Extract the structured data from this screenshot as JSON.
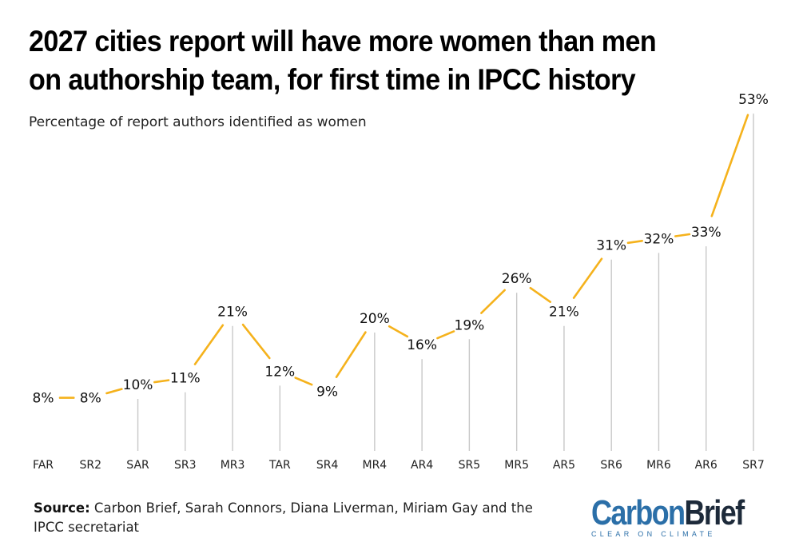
{
  "title": "2027 cities report will have more women than men on authorship team, for first time in IPCC history",
  "subtitle": "Percentage of report authors identified as women",
  "source_label": "Source:",
  "source_text": " Carbon Brief, Sarah Connors, Diana Liverman, Miriam Gay and the IPCC secretariat",
  "logo": {
    "part1": "Carbon",
    "part2": "Brief",
    "tagline": "CLEAR ON CLIMATE"
  },
  "colors": {
    "line": "#f5b21c",
    "stem": "#c8c8c8",
    "brand_blue": "#2b6fa8",
    "brand_dark": "#1d2a3a"
  },
  "chart_data": {
    "type": "line",
    "categories": [
      "FAR",
      "SR2",
      "SAR",
      "SR3",
      "MR3",
      "TAR",
      "SR4",
      "MR4",
      "AR4",
      "SR5",
      "MR5",
      "AR5",
      "SR6",
      "MR6",
      "AR6",
      "SR7"
    ],
    "values": [
      8,
      8,
      10,
      11,
      21,
      12,
      9,
      20,
      16,
      19,
      26,
      21,
      31,
      32,
      33,
      53
    ],
    "data_labels": [
      "8%",
      "8%",
      "10%",
      "11%",
      "21%",
      "12%",
      "9%",
      "20%",
      "16%",
      "19%",
      "26%",
      "21%",
      "31%",
      "32%",
      "33%",
      "53%"
    ],
    "unit": "%",
    "xlabel": "",
    "ylabel": "",
    "grid": false,
    "stems": true
  }
}
